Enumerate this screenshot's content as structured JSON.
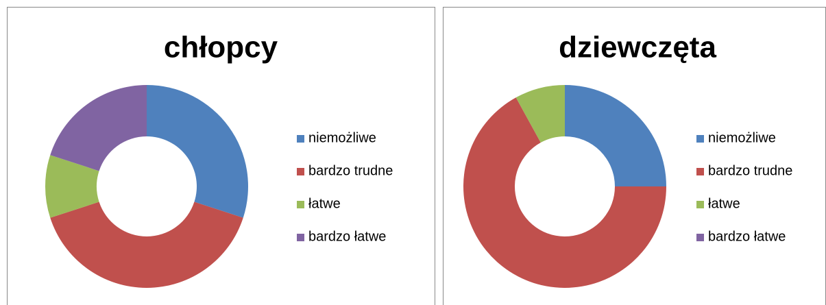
{
  "chart_data": [
    {
      "type": "donut",
      "title": "chłopcy",
      "categories": [
        "niemożliwe",
        "bardzo trudne",
        "łatwe",
        "bardzo łatwe"
      ],
      "values": [
        30,
        40,
        10,
        20
      ],
      "colors": [
        "#4f81bd",
        "#c0504d",
        "#9bbb59",
        "#8064a2"
      ],
      "legend": "right"
    },
    {
      "type": "donut",
      "title": "dziewczęta",
      "categories": [
        "niemożliwe",
        "bardzo trudne",
        "łatwe",
        "bardzo łatwe"
      ],
      "values": [
        25,
        67,
        8,
        0
      ],
      "colors": [
        "#4f81bd",
        "#c0504d",
        "#9bbb59",
        "#8064a2"
      ],
      "legend": "right"
    }
  ]
}
